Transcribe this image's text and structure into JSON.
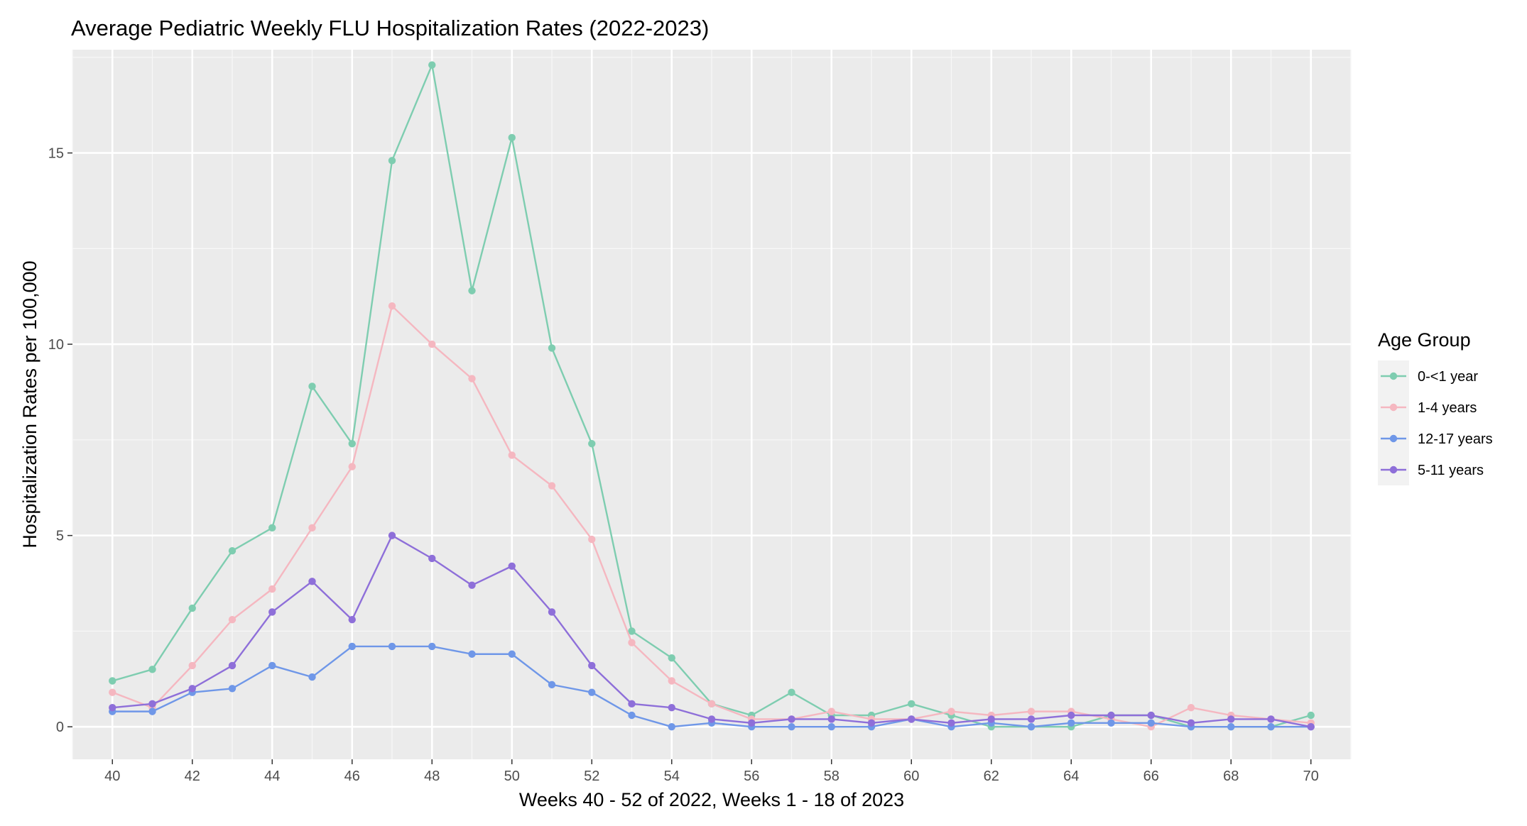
{
  "chart_data": {
    "type": "line",
    "title": "Average Pediatric Weekly FLU Hospitalization Rates (2022-2023)",
    "xlabel": "Weeks 40 - 52 of 2022, Weeks 1 - 18 of 2023",
    "ylabel": "Hospitalization Rates per 100,000",
    "xlim": [
      39,
      71
    ],
    "ylim": [
      -0.85,
      17.7
    ],
    "x_ticks": [
      40,
      42,
      44,
      46,
      48,
      50,
      52,
      54,
      56,
      58,
      60,
      62,
      64,
      66,
      68,
      70
    ],
    "y_ticks": [
      0,
      5,
      10,
      15
    ],
    "x_tick_labels": [
      "40",
      "42",
      "44",
      "46",
      "48",
      "50",
      "52",
      "54",
      "56",
      "58",
      "60",
      "62",
      "64",
      "66",
      "68",
      "70"
    ],
    "y_tick_labels": [
      "0",
      "5",
      "10",
      "15"
    ],
    "grid": true,
    "legend": {
      "title": "Age Group",
      "position": "right"
    },
    "x": [
      40,
      41,
      42,
      43,
      44,
      45,
      46,
      47,
      48,
      49,
      50,
      51,
      52,
      53,
      54,
      55,
      56,
      57,
      58,
      59,
      60,
      61,
      62,
      63,
      64,
      65,
      66,
      67,
      68,
      69,
      70
    ],
    "series": [
      {
        "name": "0-<1 year",
        "color": "#7ecdb0",
        "values": [
          1.2,
          1.5,
          3.1,
          4.6,
          5.2,
          8.9,
          7.4,
          14.8,
          17.3,
          11.4,
          15.4,
          9.9,
          7.4,
          2.5,
          1.8,
          0.6,
          0.3,
          0.9,
          0.3,
          0.3,
          0.6,
          0.3,
          0.0,
          0.0,
          0.0,
          0.3,
          0.3,
          0.0,
          0.0,
          0.0,
          0.3
        ]
      },
      {
        "name": "1-4 years",
        "color": "#f5b7c0",
        "values": [
          0.9,
          0.5,
          1.6,
          2.8,
          3.6,
          5.2,
          6.8,
          11.0,
          10.0,
          9.1,
          7.1,
          6.3,
          4.9,
          2.2,
          1.2,
          0.6,
          0.2,
          0.2,
          0.4,
          0.2,
          0.2,
          0.4,
          0.3,
          0.4,
          0.4,
          0.2,
          0.0,
          0.5,
          0.3,
          0.2,
          0.1
        ]
      },
      {
        "name": "12-17 years",
        "color": "#6f97e8",
        "values": [
          0.4,
          0.4,
          0.9,
          1.0,
          1.6,
          1.3,
          2.1,
          2.1,
          2.1,
          1.9,
          1.9,
          1.1,
          0.9,
          0.3,
          0.0,
          0.1,
          0.0,
          0.0,
          0.0,
          0.0,
          0.2,
          0.0,
          0.1,
          0.0,
          0.1,
          0.1,
          0.1,
          0.0,
          0.0,
          0.0,
          0.0
        ]
      },
      {
        "name": "5-11 years",
        "color": "#8e6fd9",
        "values": [
          0.5,
          0.6,
          1.0,
          1.6,
          3.0,
          3.8,
          2.8,
          5.0,
          4.4,
          3.7,
          4.2,
          3.0,
          1.6,
          0.6,
          0.5,
          0.2,
          0.1,
          0.2,
          0.2,
          0.1,
          0.2,
          0.1,
          0.2,
          0.2,
          0.3,
          0.3,
          0.3,
          0.1,
          0.2,
          0.2,
          0.0
        ]
      }
    ]
  }
}
